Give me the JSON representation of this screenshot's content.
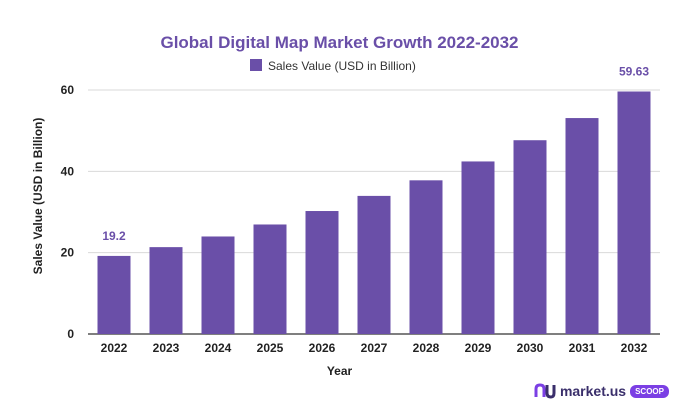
{
  "colors": {
    "bar": "#6a4fa8",
    "title": "#6a4fa8",
    "grid": "#d9d9d9",
    "axis": "#333333",
    "data_label": "#6a4fa8",
    "brand_badge": "#7b3fe4"
  },
  "brand": {
    "name": "market.us",
    "badge": "SCOOP"
  },
  "chart_data": {
    "type": "bar",
    "title": "Global Digital Map Market Growth 2022-2032",
    "xlabel": "Year",
    "ylabel": "Sales Value (USD in Billion)",
    "ylim": [
      0,
      60
    ],
    "yticks": [
      "0",
      "20",
      "40",
      "60"
    ],
    "grid": "horizontal",
    "legend_position": "top-center",
    "categories": [
      "2022",
      "2023",
      "2024",
      "2025",
      "2026",
      "2027",
      "2028",
      "2029",
      "2030",
      "2031",
      "2032"
    ],
    "series": [
      {
        "name": "Sales Value (USD in Billion)",
        "values": [
          19.2,
          21.36,
          23.98,
          26.93,
          30.24,
          33.96,
          37.79,
          42.43,
          47.65,
          53.1,
          59.63
        ]
      }
    ],
    "data_labels": [
      {
        "category": "2022",
        "text": "19.2"
      },
      {
        "category": "2032",
        "text": "59.63"
      }
    ]
  }
}
